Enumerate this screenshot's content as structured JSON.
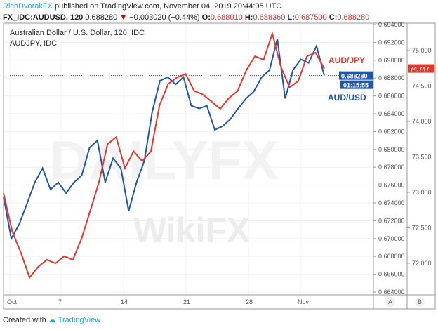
{
  "header": {
    "author": "RichDvorakFX",
    "published": "published on TradingView.com, November 04, 2019 20:44:05 UTC",
    "symbol": "FX_IDC:AUDUSD, 120",
    "last": "0.688280",
    "change": "−0.003020 (−0.44%)",
    "o_label": "O:",
    "o": "0.688010",
    "h_label": "H:",
    "h": "0.688360",
    "l_label": "L:",
    "l": "0.687500",
    "c_label": "C:",
    "c": "0.688280",
    "down_icon": "triangle-down-icon"
  },
  "chart_data": {
    "type": "line",
    "title": "Australian Dollar / U.S. Dollar, 120, IDC",
    "subtitle": "AUDJPY, IDC",
    "x_ticks": [
      "Oct",
      "7",
      "14",
      "21",
      "28",
      "Nov"
    ],
    "axis_a": {
      "label": "A",
      "range": [
        0.664,
        0.694
      ],
      "ticks": [
        "0.694000",
        "0.692000",
        "0.690000",
        "0.688000",
        "0.686000",
        "0.684000",
        "0.682000",
        "0.680000",
        "0.678000",
        "0.676000",
        "0.674000",
        "0.672000",
        "0.670000",
        "0.668000",
        "0.666000",
        "0.664000"
      ]
    },
    "axis_b": {
      "label": "B",
      "range": [
        71.8,
        75.36
      ],
      "ticks": [
        "75.000",
        "74.500",
        "74.000",
        "73.500",
        "73.000",
        "72.500",
        "72.000"
      ]
    },
    "grid": true,
    "series": [
      {
        "name": "AUD/USD",
        "axis": "A",
        "color": "#1f57a8",
        "last_label": "0.688280",
        "countdown": "01:15:55",
        "values": [
          0.6747,
          0.67,
          0.6716,
          0.6739,
          0.6763,
          0.6779,
          0.6755,
          0.6763,
          0.6751,
          0.6763,
          0.6771,
          0.6802,
          0.681,
          0.6763,
          0.679,
          0.6779,
          0.6731,
          0.6763,
          0.6787,
          0.6842,
          0.6877,
          0.6881,
          0.6873,
          0.6881,
          0.6849,
          0.6846,
          0.6849,
          0.6822,
          0.6826,
          0.6834,
          0.6846,
          0.6857,
          0.6865,
          0.6881,
          0.6889,
          0.6924,
          0.6857,
          0.6889,
          0.6901,
          0.6897,
          0.6916,
          0.68828
        ]
      },
      {
        "name": "AUD/JPY",
        "axis": "B",
        "color": "#e8352b",
        "last_label": "74.747",
        "values": [
          72.99,
          72.45,
          72.15,
          71.8,
          71.95,
          72.05,
          72.0,
          72.1,
          72.05,
          72.35,
          72.74,
          73.14,
          73.68,
          73.78,
          73.34,
          73.58,
          73.44,
          73.58,
          74.23,
          74.53,
          74.62,
          74.67,
          74.43,
          74.38,
          74.28,
          74.18,
          74.33,
          74.43,
          74.72,
          74.92,
          74.87,
          75.24,
          74.77,
          74.48,
          74.57,
          74.92,
          74.97,
          74.747
        ]
      }
    ]
  },
  "watermark": {
    "a": "DAILYFX",
    "b": "WikiFX"
  },
  "footer": {
    "created": "Created with",
    "brand": "TradingView"
  }
}
